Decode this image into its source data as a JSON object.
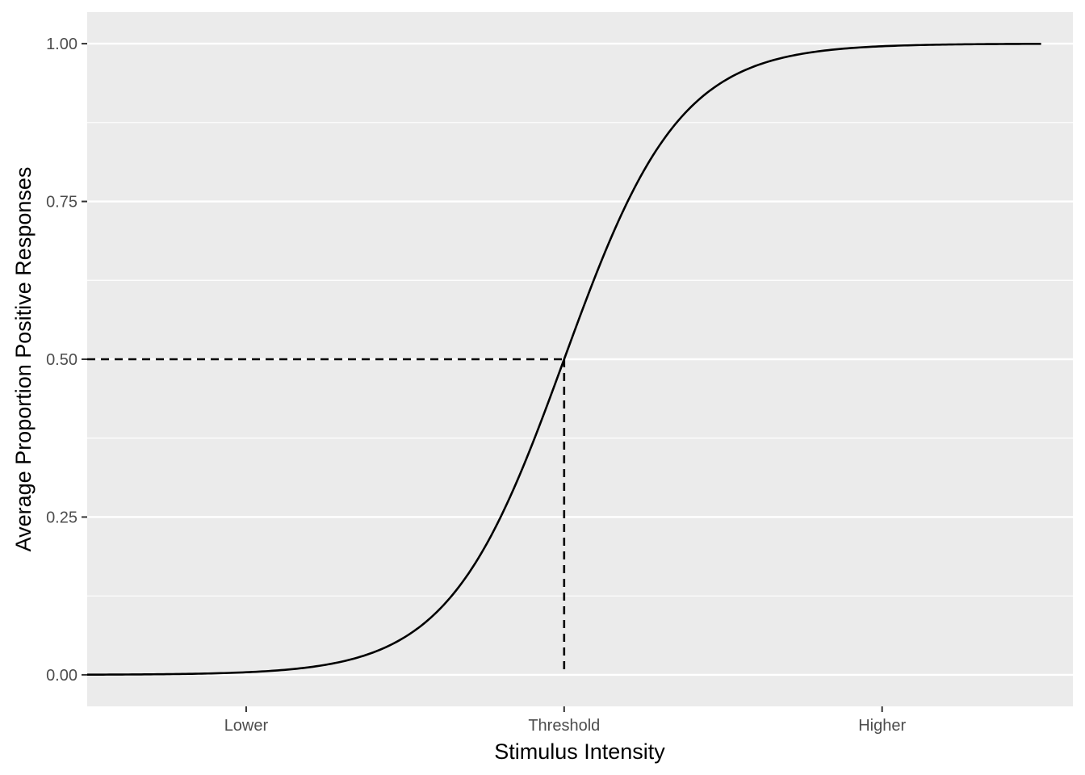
{
  "chart_data": {
    "type": "line",
    "title": "",
    "xlabel": "Stimulus Intensity",
    "ylabel": "Average Proportion Positive Responses",
    "x_ticks": [
      {
        "label": "Lower",
        "value": -1
      },
      {
        "label": "Threshold",
        "value": 0
      },
      {
        "label": "Higher",
        "value": 1
      }
    ],
    "y_ticks": [
      {
        "label": "0.00",
        "value": 0
      },
      {
        "label": "0.25",
        "value": 0.25
      },
      {
        "label": "0.50",
        "value": 0.5
      },
      {
        "label": "0.75",
        "value": 0.75
      },
      {
        "label": "1.00",
        "value": 1
      }
    ],
    "xlim": [
      -1.5,
      1.6
    ],
    "ylim": [
      -0.05,
      1.05
    ],
    "grid": true,
    "series": [
      {
        "curve": "logistic",
        "midpoint": 0,
        "slope": 5.5,
        "x_range": [
          -1.5,
          1.5
        ],
        "color": "#000000",
        "style": "solid"
      }
    ],
    "threshold_guides": {
      "x": 0,
      "y": 0.5,
      "color": "#000000",
      "style": "dashed"
    },
    "panel_background": "#ebebeb",
    "grid_color": "#ffffff"
  }
}
